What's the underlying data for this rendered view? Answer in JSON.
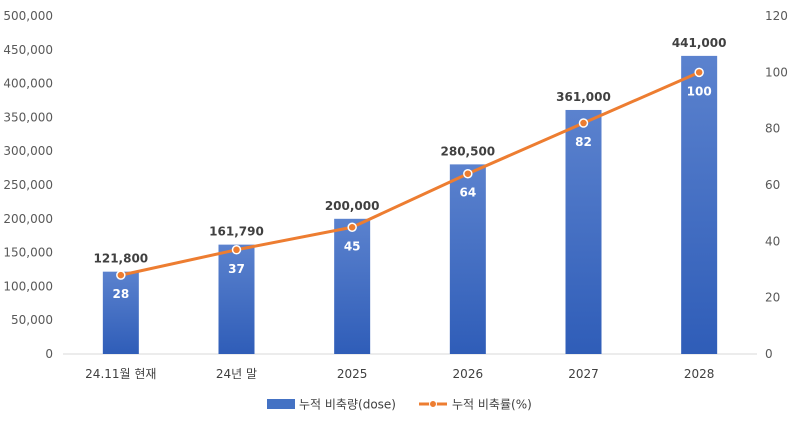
{
  "chart_data": {
    "type": "bar",
    "categories": [
      "24.11월 현재",
      "24년 말",
      "2025",
      "2026",
      "2027",
      "2028"
    ],
    "series": [
      {
        "name": "누적 비축량(dose)",
        "type": "bar",
        "axis": "left",
        "values": [
          121800,
          161790,
          200000,
          280500,
          361000,
          441000
        ],
        "labels": [
          "121,800",
          "161,790",
          "200,000",
          "280,500",
          "361,000",
          "441,000"
        ]
      },
      {
        "name": "누적 비축률(%)",
        "type": "line",
        "axis": "right",
        "values": [
          28,
          37,
          45,
          64,
          82,
          100
        ],
        "labels": [
          "28",
          "37",
          "45",
          "64",
          "82",
          "100"
        ]
      }
    ],
    "ylim": [
      0,
      500000
    ],
    "y_ticks": [
      "0",
      "50,000",
      "100,000",
      "150,000",
      "200,000",
      "250,000",
      "300,000",
      "350,000",
      "400,000",
      "450,000",
      "500,000"
    ],
    "y2lim": [
      0,
      120
    ],
    "y2_ticks": [
      "0",
      "20",
      "40",
      "60",
      "80",
      "100",
      "120"
    ],
    "legend_position": "bottom",
    "grid": false,
    "colors": {
      "bar": "#4472C4",
      "line": "#ED7D31"
    }
  }
}
